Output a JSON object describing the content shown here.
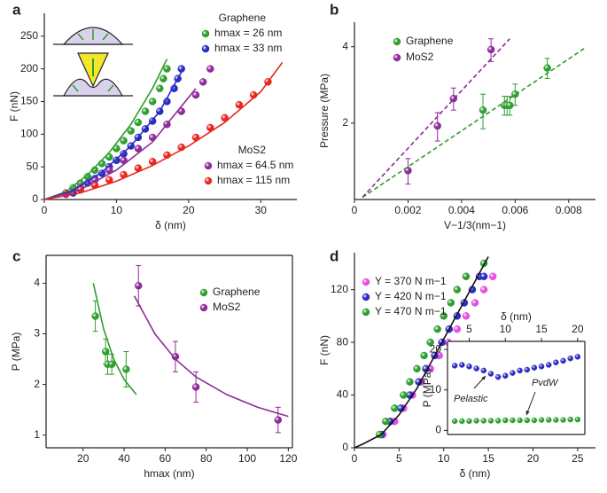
{
  "chart_data": [
    {
      "type": "scatter",
      "panel_label": "a",
      "xlabel": "δ (nm)",
      "ylabel": "F (nN)",
      "frame": "open",
      "xlim": [
        0,
        35
      ],
      "xticks": [
        0,
        10,
        20,
        30
      ],
      "ylim": [
        0,
        285
      ],
      "yticks": [
        0,
        50,
        100,
        150,
        200,
        250
      ],
      "legend_titles": [
        "Graphene",
        "MoS2"
      ],
      "series": [
        {
          "name": "hmax = 26 nm",
          "color": "#2e9e2e",
          "style": "markers",
          "x": [
            3,
            4,
            5,
            6,
            7,
            8,
            9,
            10,
            11,
            12,
            13,
            14,
            15,
            16,
            16.5,
            17
          ],
          "values": [
            10,
            18,
            25,
            35,
            45,
            55,
            65,
            78,
            90,
            105,
            118,
            135,
            150,
            170,
            185,
            200
          ]
        },
        {
          "name": "hmax = 33 nm",
          "color": "#2b2bc4",
          "style": "markers",
          "x": [
            4,
            5,
            6,
            7,
            8,
            9,
            10,
            11,
            12,
            13,
            14,
            15,
            16,
            17,
            18,
            18.5,
            19
          ],
          "values": [
            10,
            18,
            25,
            32,
            40,
            50,
            60,
            70,
            82,
            95,
            108,
            120,
            135,
            150,
            170,
            185,
            200
          ]
        },
        {
          "name": "hmax = 64.5 nm",
          "color": "#8e2a99",
          "style": "markers",
          "x": [
            3,
            5,
            7,
            9,
            11,
            13,
            15,
            17,
            19,
            21,
            22,
            23
          ],
          "values": [
            8,
            18,
            30,
            45,
            60,
            78,
            95,
            115,
            135,
            160,
            180,
            200
          ]
        },
        {
          "name": "hmax = 115 nm",
          "color": "#e8261e",
          "style": "markers",
          "x": [
            3,
            5,
            7,
            9,
            11,
            13,
            15,
            17,
            19,
            21,
            23,
            25,
            27,
            29,
            31
          ],
          "values": [
            10,
            15,
            22,
            30,
            38,
            48,
            58,
            68,
            80,
            95,
            110,
            125,
            145,
            160,
            180
          ]
        },
        {
          "color": "#2e9e2e",
          "style": "line",
          "x": [
            0,
            3,
            6,
            9,
            12,
            15,
            17
          ],
          "values": [
            0,
            12,
            38,
            72,
            115,
            170,
            215
          ]
        },
        {
          "color": "#2b2bc4",
          "style": "line",
          "x": [
            0,
            4,
            8,
            12,
            16,
            19
          ],
          "values": [
            0,
            14,
            42,
            82,
            135,
            195
          ]
        },
        {
          "color": "#8e2a99",
          "style": "line",
          "x": [
            0,
            5,
            10,
            15,
            21
          ],
          "values": [
            0,
            15,
            45,
            88,
            170
          ]
        },
        {
          "color": "#e8261e",
          "style": "line",
          "x": [
            0,
            5,
            10,
            15,
            20,
            25,
            30,
            33
          ],
          "values": [
            0,
            10,
            28,
            52,
            82,
            118,
            165,
            210
          ]
        }
      ]
    },
    {
      "type": "scatter",
      "panel_label": "b",
      "xlabel": "V−1/3(nm−1)",
      "ylabel": "Pressure (MPa)",
      "frame": "open",
      "xlim": [
        0,
        0.009
      ],
      "xticks": [
        0,
        0.002,
        0.004,
        0.006,
        0.008
      ],
      "ylim": [
        1,
        5
      ],
      "yticks": [
        2,
        4
      ],
      "log_y": true,
      "series": [
        {
          "name": "Graphene",
          "color": "#2e9e2e",
          "style": "markers",
          "x": [
            0.0048,
            0.0056,
            0.0057,
            0.0058,
            0.006,
            0.0072
          ],
          "values": [
            2.25,
            2.35,
            2.35,
            2.35,
            2.6,
            3.3
          ],
          "errors": [
            0.35,
            0.2,
            0.2,
            0.2,
            0.25,
            0.3
          ]
        },
        {
          "name": "MoS2",
          "color": "#8e2a99",
          "style": "markers",
          "x": [
            0.002,
            0.0031,
            0.0037,
            0.0051
          ],
          "values": [
            1.3,
            1.95,
            2.5,
            3.9
          ],
          "errors": [
            0.15,
            0.25,
            0.25,
            0.4
          ]
        },
        {
          "color": "#2e9e2e",
          "style": "dashed",
          "x": [
            0.0003,
            0.0086
          ],
          "values": [
            1.02,
            3.95
          ]
        },
        {
          "color": "#8e2a99",
          "style": "dashed",
          "x": [
            0.0003,
            0.0058
          ],
          "values": [
            1.02,
            4.3
          ]
        }
      ]
    },
    {
      "type": "scatter",
      "panel_label": "c",
      "xlabel": "hmax (nm)",
      "ylabel": "P (MPa)",
      "frame": "box",
      "xlim": [
        2,
        122
      ],
      "xticks": [
        20,
        40,
        60,
        80,
        100,
        120
      ],
      "ylim": [
        0.75,
        4.55
      ],
      "yticks": [
        1,
        2,
        3,
        4
      ],
      "series": [
        {
          "name": "Graphene",
          "color": "#2e9e2e",
          "style": "markers",
          "x": [
            26,
            31,
            32,
            34,
            41
          ],
          "values": [
            3.35,
            2.65,
            2.4,
            2.4,
            2.3
          ],
          "errors": [
            0.3,
            0.25,
            0.2,
            0.2,
            0.35
          ]
        },
        {
          "name": "MoS2",
          "color": "#8e2a99",
          "style": "markers",
          "x": [
            47,
            65,
            75,
            115
          ],
          "values": [
            3.95,
            2.55,
            1.95,
            1.3
          ],
          "errors": [
            0.4,
            0.3,
            0.3,
            0.25
          ]
        },
        {
          "color": "#2e9e2e",
          "style": "line",
          "x": [
            25,
            30,
            35,
            40,
            46
          ],
          "values": [
            4.0,
            3.1,
            2.5,
            2.1,
            1.8
          ]
        },
        {
          "color": "#8e2a99",
          "style": "line",
          "x": [
            45,
            55,
            65,
            75,
            90,
            105,
            120
          ],
          "values": [
            3.75,
            3.0,
            2.5,
            2.15,
            1.8,
            1.55,
            1.37
          ]
        }
      ]
    },
    {
      "type": "scatter",
      "panel_label": "d",
      "xlabel": "δ (nm)",
      "ylabel": "F (nN)",
      "frame": "open",
      "xlim": [
        0,
        27
      ],
      "xticks": [
        0,
        5,
        10,
        15,
        20,
        25
      ],
      "ylim": [
        0,
        148
      ],
      "yticks": [
        0,
        40,
        80,
        120
      ],
      "series": [
        {
          "name": "Y = 370 N m−1",
          "color": "#e64ee6",
          "style": "markers",
          "x": [
            3.2,
            4.5,
            5.5,
            6.5,
            7.5,
            8.5,
            9.5,
            10.5,
            11.5,
            12.5,
            13.5,
            14.5,
            15.5
          ],
          "values": [
            10,
            20,
            30,
            40,
            50,
            60,
            70,
            80,
            90,
            100,
            110,
            120,
            130
          ]
        },
        {
          "name": "Y = 420 N m−1",
          "color": "#2b2bc4",
          "style": "markers",
          "x": [
            3,
            4,
            5.2,
            6.2,
            7.2,
            8,
            9,
            9.8,
            10.6,
            11.5,
            12.3,
            13.2,
            14,
            14.5
          ],
          "values": [
            10,
            20,
            30,
            40,
            50,
            60,
            70,
            80,
            90,
            100,
            110,
            120,
            130,
            130
          ]
        },
        {
          "name": "Y = 470 N m−1",
          "color": "#2e9e2e",
          "style": "markers",
          "x": [
            2.8,
            3.5,
            4.5,
            5.5,
            6.2,
            7,
            7.8,
            8.5,
            9.3,
            10,
            10.8,
            11.5,
            12.5,
            14.5
          ],
          "values": [
            10,
            20,
            30,
            40,
            50,
            60,
            70,
            80,
            90,
            100,
            110,
            120,
            130,
            140
          ]
        },
        {
          "color": "#111111",
          "style": "line",
          "x": [
            0,
            1,
            3,
            5,
            7,
            9,
            11,
            13,
            15
          ],
          "values": [
            0,
            3,
            10,
            25,
            45,
            70,
            95,
            120,
            145
          ]
        }
      ]
    },
    {
      "type": "scatter",
      "xlabel": "δ (nm)",
      "ylabel": "P (MPa)",
      "frame": "box",
      "x_axis_side": "top",
      "xlim": [
        2,
        21
      ],
      "xticks": [
        5,
        10,
        15,
        20
      ],
      "ylim": [
        -1,
        22
      ],
      "yticks": [
        0,
        10,
        20
      ],
      "annotations": [
        "Pelastic",
        "PvdW"
      ],
      "series": [
        {
          "color": "#2b2bc4",
          "style": "markers",
          "x": [
            3,
            4,
            5,
            6,
            7,
            8,
            9,
            10,
            11,
            12,
            13,
            14,
            15,
            16,
            17,
            18,
            19,
            20
          ],
          "values": [
            16,
            16.2,
            15.8,
            15.3,
            14.8,
            14,
            13.2,
            13.5,
            14.2,
            14.8,
            15,
            15.5,
            15.8,
            16.2,
            16.8,
            17.2,
            17.8,
            18.2
          ]
        },
        {
          "color": "#2e9e2e",
          "style": "markers",
          "x": [
            3,
            4,
            5,
            6,
            7,
            8,
            9,
            10,
            11,
            12,
            13,
            14,
            15,
            16,
            17,
            18,
            19,
            20
          ],
          "values": [
            2.3,
            2.3,
            2.3,
            2.4,
            2.4,
            2.4,
            2.4,
            2.5,
            2.5,
            2.5,
            2.5,
            2.5,
            2.6,
            2.6,
            2.6,
            2.6,
            2.7,
            2.7
          ]
        }
      ]
    }
  ]
}
